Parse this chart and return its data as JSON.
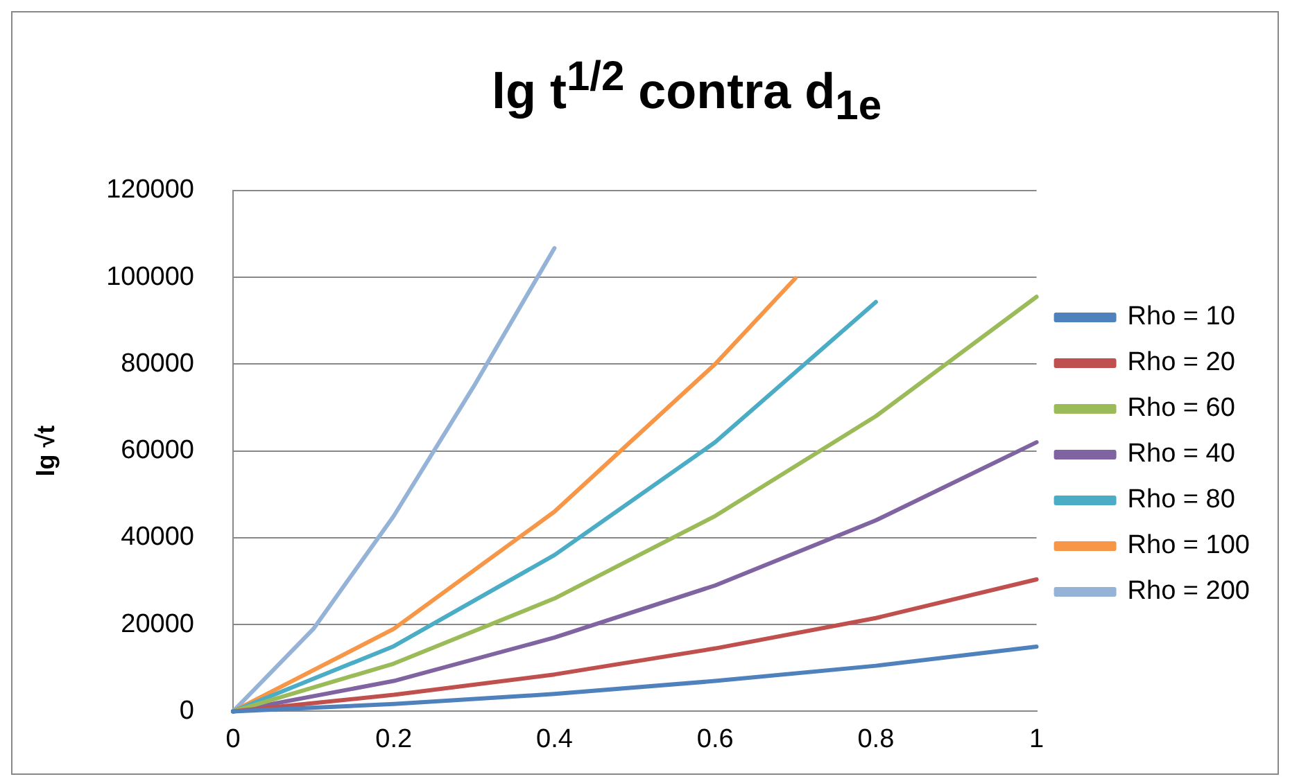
{
  "chart_data": {
    "type": "line",
    "title": "lg t$^{1/2}$  contra  d$_{1e}$",
    "ylabel": "lg √t",
    "xlim": [
      0,
      1
    ],
    "xticks": [
      0,
      0.2,
      0.4,
      0.6,
      0.8,
      1
    ],
    "ylim": [
      0,
      120000
    ],
    "yticks": [
      0,
      20000,
      40000,
      60000,
      80000,
      100000,
      120000
    ],
    "grid": "y",
    "legend": "right",
    "marker": "none",
    "line_style": "solid",
    "series": [
      {
        "name": "Rho = 10",
        "color": "#4f81bd",
        "x": [
          0,
          0.2,
          0.4,
          0.6,
          0.8,
          1
        ],
        "values": [
          0,
          1700,
          4000,
          7000,
          10500,
          14900
        ]
      },
      {
        "name": "Rho = 20",
        "color": "#c0504d",
        "x": [
          0,
          0.2,
          0.4,
          0.6,
          0.8,
          1
        ],
        "values": [
          0,
          3800,
          8500,
          14500,
          21500,
          30400
        ]
      },
      {
        "name": "Rho = 60",
        "color": "#9bbb59",
        "x": [
          0,
          0.2,
          0.4,
          0.6,
          0.8,
          1
        ],
        "values": [
          0,
          11000,
          26000,
          45000,
          68000,
          95500
        ]
      },
      {
        "name": "Rho = 40",
        "color": "#8064a2",
        "x": [
          0,
          0.2,
          0.4,
          0.6,
          0.8,
          1
        ],
        "values": [
          0,
          7000,
          17000,
          29000,
          44000,
          62000
        ]
      },
      {
        "name": "Rho = 80",
        "color": "#4bacc6",
        "x": [
          0,
          0.2,
          0.4,
          0.6,
          0.8
        ],
        "values": [
          0,
          15000,
          36000,
          62000,
          94300
        ]
      },
      {
        "name": "Rho = 100",
        "color": "#f79646",
        "x": [
          0,
          0.2,
          0.4,
          0.6,
          0.7
        ],
        "values": [
          0,
          19000,
          46000,
          80000,
          99800
        ]
      },
      {
        "name": "Rho = 200",
        "color": "#95b3d7",
        "x": [
          0,
          0.1,
          0.2,
          0.3,
          0.4
        ],
        "values": [
          0,
          19000,
          45000,
          75000,
          106700
        ]
      }
    ]
  }
}
